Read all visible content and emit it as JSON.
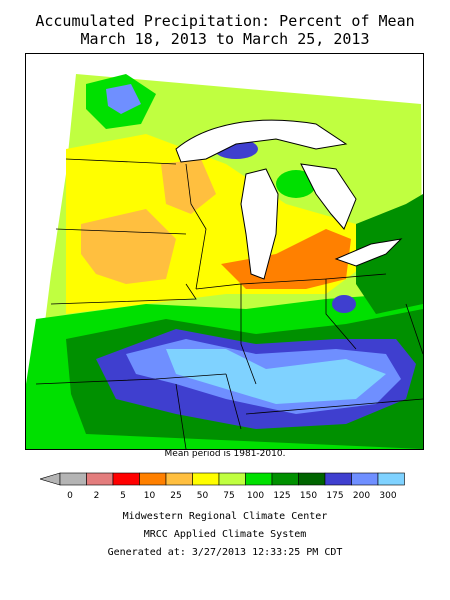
{
  "title": {
    "line1": "Accumulated Precipitation: Percent of Mean",
    "line2": "March 18, 2013 to March 25, 2013"
  },
  "mean_note": "Mean period is 1981-2010.",
  "legend": {
    "ticks": [
      "0",
      "2",
      "5",
      "10",
      "25",
      "50",
      "75",
      "100",
      "125",
      "150",
      "175",
      "200",
      "300"
    ],
    "colors": [
      "#b4b4b4",
      "#e37d7d",
      "#ff0000",
      "#ff8000",
      "#ffbf3f",
      "#fffe00",
      "#c0ff40",
      "#00e000",
      "#009000",
      "#006400",
      "#3f3fcf",
      "#6f8fff",
      "#7fd2ff"
    ]
  },
  "footer": {
    "line1": "Midwestern Regional Climate Center",
    "line2": "MRCC Applied Climate System",
    "line3": "Generated at: 3/27/2013 12:33:25 PM CDT"
  }
}
